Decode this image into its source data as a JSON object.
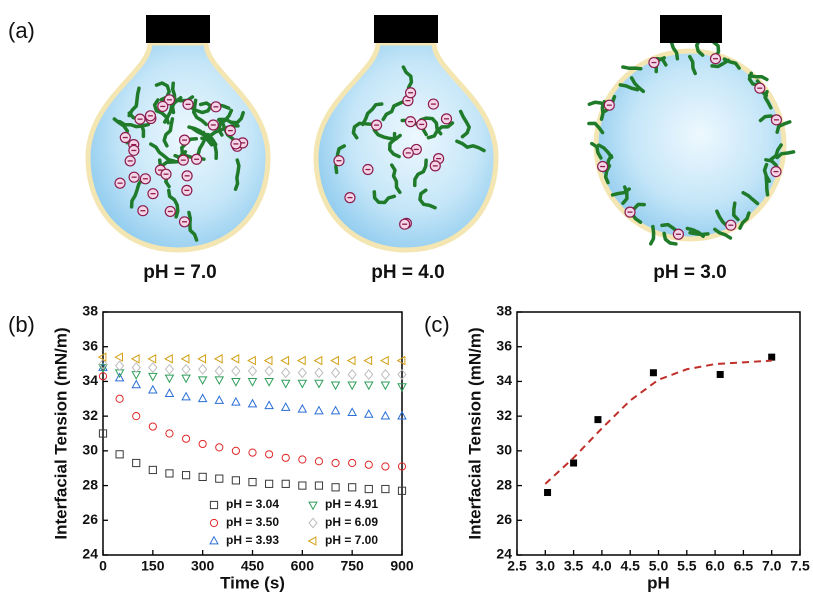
{
  "figure": {
    "panel_labels": [
      "(a)",
      "(b)",
      "(c)"
    ],
    "captions": [
      "pH = 7.0",
      "pH = 4.0",
      "pH = 3.0"
    ]
  },
  "chart_data": [
    {
      "type": "scatter",
      "xlabel": "Time (s)",
      "ylabel": "Interfacial Tension (mN/m)",
      "x": [
        0,
        50,
        100,
        150,
        200,
        250,
        300,
        350,
        400,
        450,
        500,
        550,
        600,
        650,
        700,
        750,
        800,
        850,
        900
      ],
      "xlim": [
        0,
        900
      ],
      "xticks": [
        0,
        150,
        300,
        450,
        600,
        750,
        900
      ],
      "ylim": [
        24,
        38
      ],
      "yticks": [
        24,
        26,
        28,
        30,
        32,
        34,
        36,
        38
      ],
      "legend": "lower right",
      "series": [
        {
          "name": "pH = 3.04",
          "color": "#3a3a3a",
          "marker": "square",
          "values": [
            31.0,
            29.8,
            29.3,
            28.9,
            28.7,
            28.6,
            28.5,
            28.4,
            28.3,
            28.2,
            28.1,
            28.1,
            28.0,
            28.0,
            27.9,
            27.9,
            27.8,
            27.8,
            27.7
          ]
        },
        {
          "name": "pH = 3.50",
          "color": "#e02828",
          "marker": "circle",
          "values": [
            34.3,
            33.0,
            32.0,
            31.4,
            31.0,
            30.7,
            30.4,
            30.2,
            30.0,
            29.9,
            29.8,
            29.6,
            29.5,
            29.4,
            29.3,
            29.3,
            29.2,
            29.1,
            29.1
          ]
        },
        {
          "name": "pH = 3.93",
          "color": "#2a6fd6",
          "marker": "triangle-up",
          "values": [
            34.8,
            34.2,
            33.8,
            33.5,
            33.3,
            33.1,
            33.0,
            32.9,
            32.8,
            32.7,
            32.6,
            32.5,
            32.4,
            32.3,
            32.3,
            32.2,
            32.1,
            32.0,
            32.0
          ]
        },
        {
          "name": "pH = 4.91",
          "color": "#2e9e5a",
          "marker": "triangle-down",
          "values": [
            34.8,
            34.5,
            34.4,
            34.3,
            34.2,
            34.2,
            34.1,
            34.1,
            34.0,
            34.0,
            34.0,
            33.9,
            33.9,
            33.9,
            33.8,
            33.8,
            33.8,
            33.8,
            33.7
          ]
        },
        {
          "name": "pH = 6.09",
          "color": "#bdbdbd",
          "marker": "diamond",
          "values": [
            35.0,
            34.9,
            34.8,
            34.8,
            34.7,
            34.7,
            34.7,
            34.6,
            34.6,
            34.6,
            34.6,
            34.5,
            34.5,
            34.5,
            34.5,
            34.4,
            34.4,
            34.4,
            34.4
          ]
        },
        {
          "name": "pH = 7.00",
          "color": "#d4a017",
          "marker": "triangle-left",
          "values": [
            35.4,
            35.4,
            35.3,
            35.3,
            35.3,
            35.3,
            35.3,
            35.3,
            35.3,
            35.2,
            35.2,
            35.2,
            35.2,
            35.2,
            35.2,
            35.2,
            35.2,
            35.2,
            35.2
          ]
        }
      ]
    },
    {
      "type": "scatter",
      "xlabel": "pH",
      "ylabel": "Interfacial Tension (mN/m)",
      "xlim": [
        2.5,
        7.5
      ],
      "xticks": [
        2.5,
        {
          "value": 3,
          "label": "3.0"
        },
        3.5,
        {
          "value": 4,
          "label": "4.0"
        },
        4.5,
        {
          "value": 5,
          "label": "5.0"
        },
        5.5,
        {
          "value": 6,
          "label": "6.0"
        },
        6.5,
        {
          "value": 7,
          "label": "7.0"
        },
        7.5
      ],
      "ylim": [
        24,
        38
      ],
      "yticks": [
        24,
        26,
        28,
        30,
        32,
        34,
        36,
        38
      ],
      "series": [
        {
          "color": "#000000",
          "marker": "square",
          "filled": true,
          "x": [
            3.04,
            3.5,
            3.93,
            4.91,
            6.09,
            7.0
          ],
          "values": [
            27.6,
            29.3,
            31.8,
            34.5,
            34.4,
            35.4
          ]
        },
        {
          "color": "#c0302a",
          "style": "dashed",
          "x": [
            3.0,
            3.5,
            4.0,
            4.5,
            5.0,
            5.5,
            6.0,
            6.5,
            7.0
          ],
          "values": [
            28.1,
            29.6,
            31.3,
            32.9,
            34.1,
            34.7,
            35.0,
            35.1,
            35.2
          ]
        }
      ]
    }
  ]
}
